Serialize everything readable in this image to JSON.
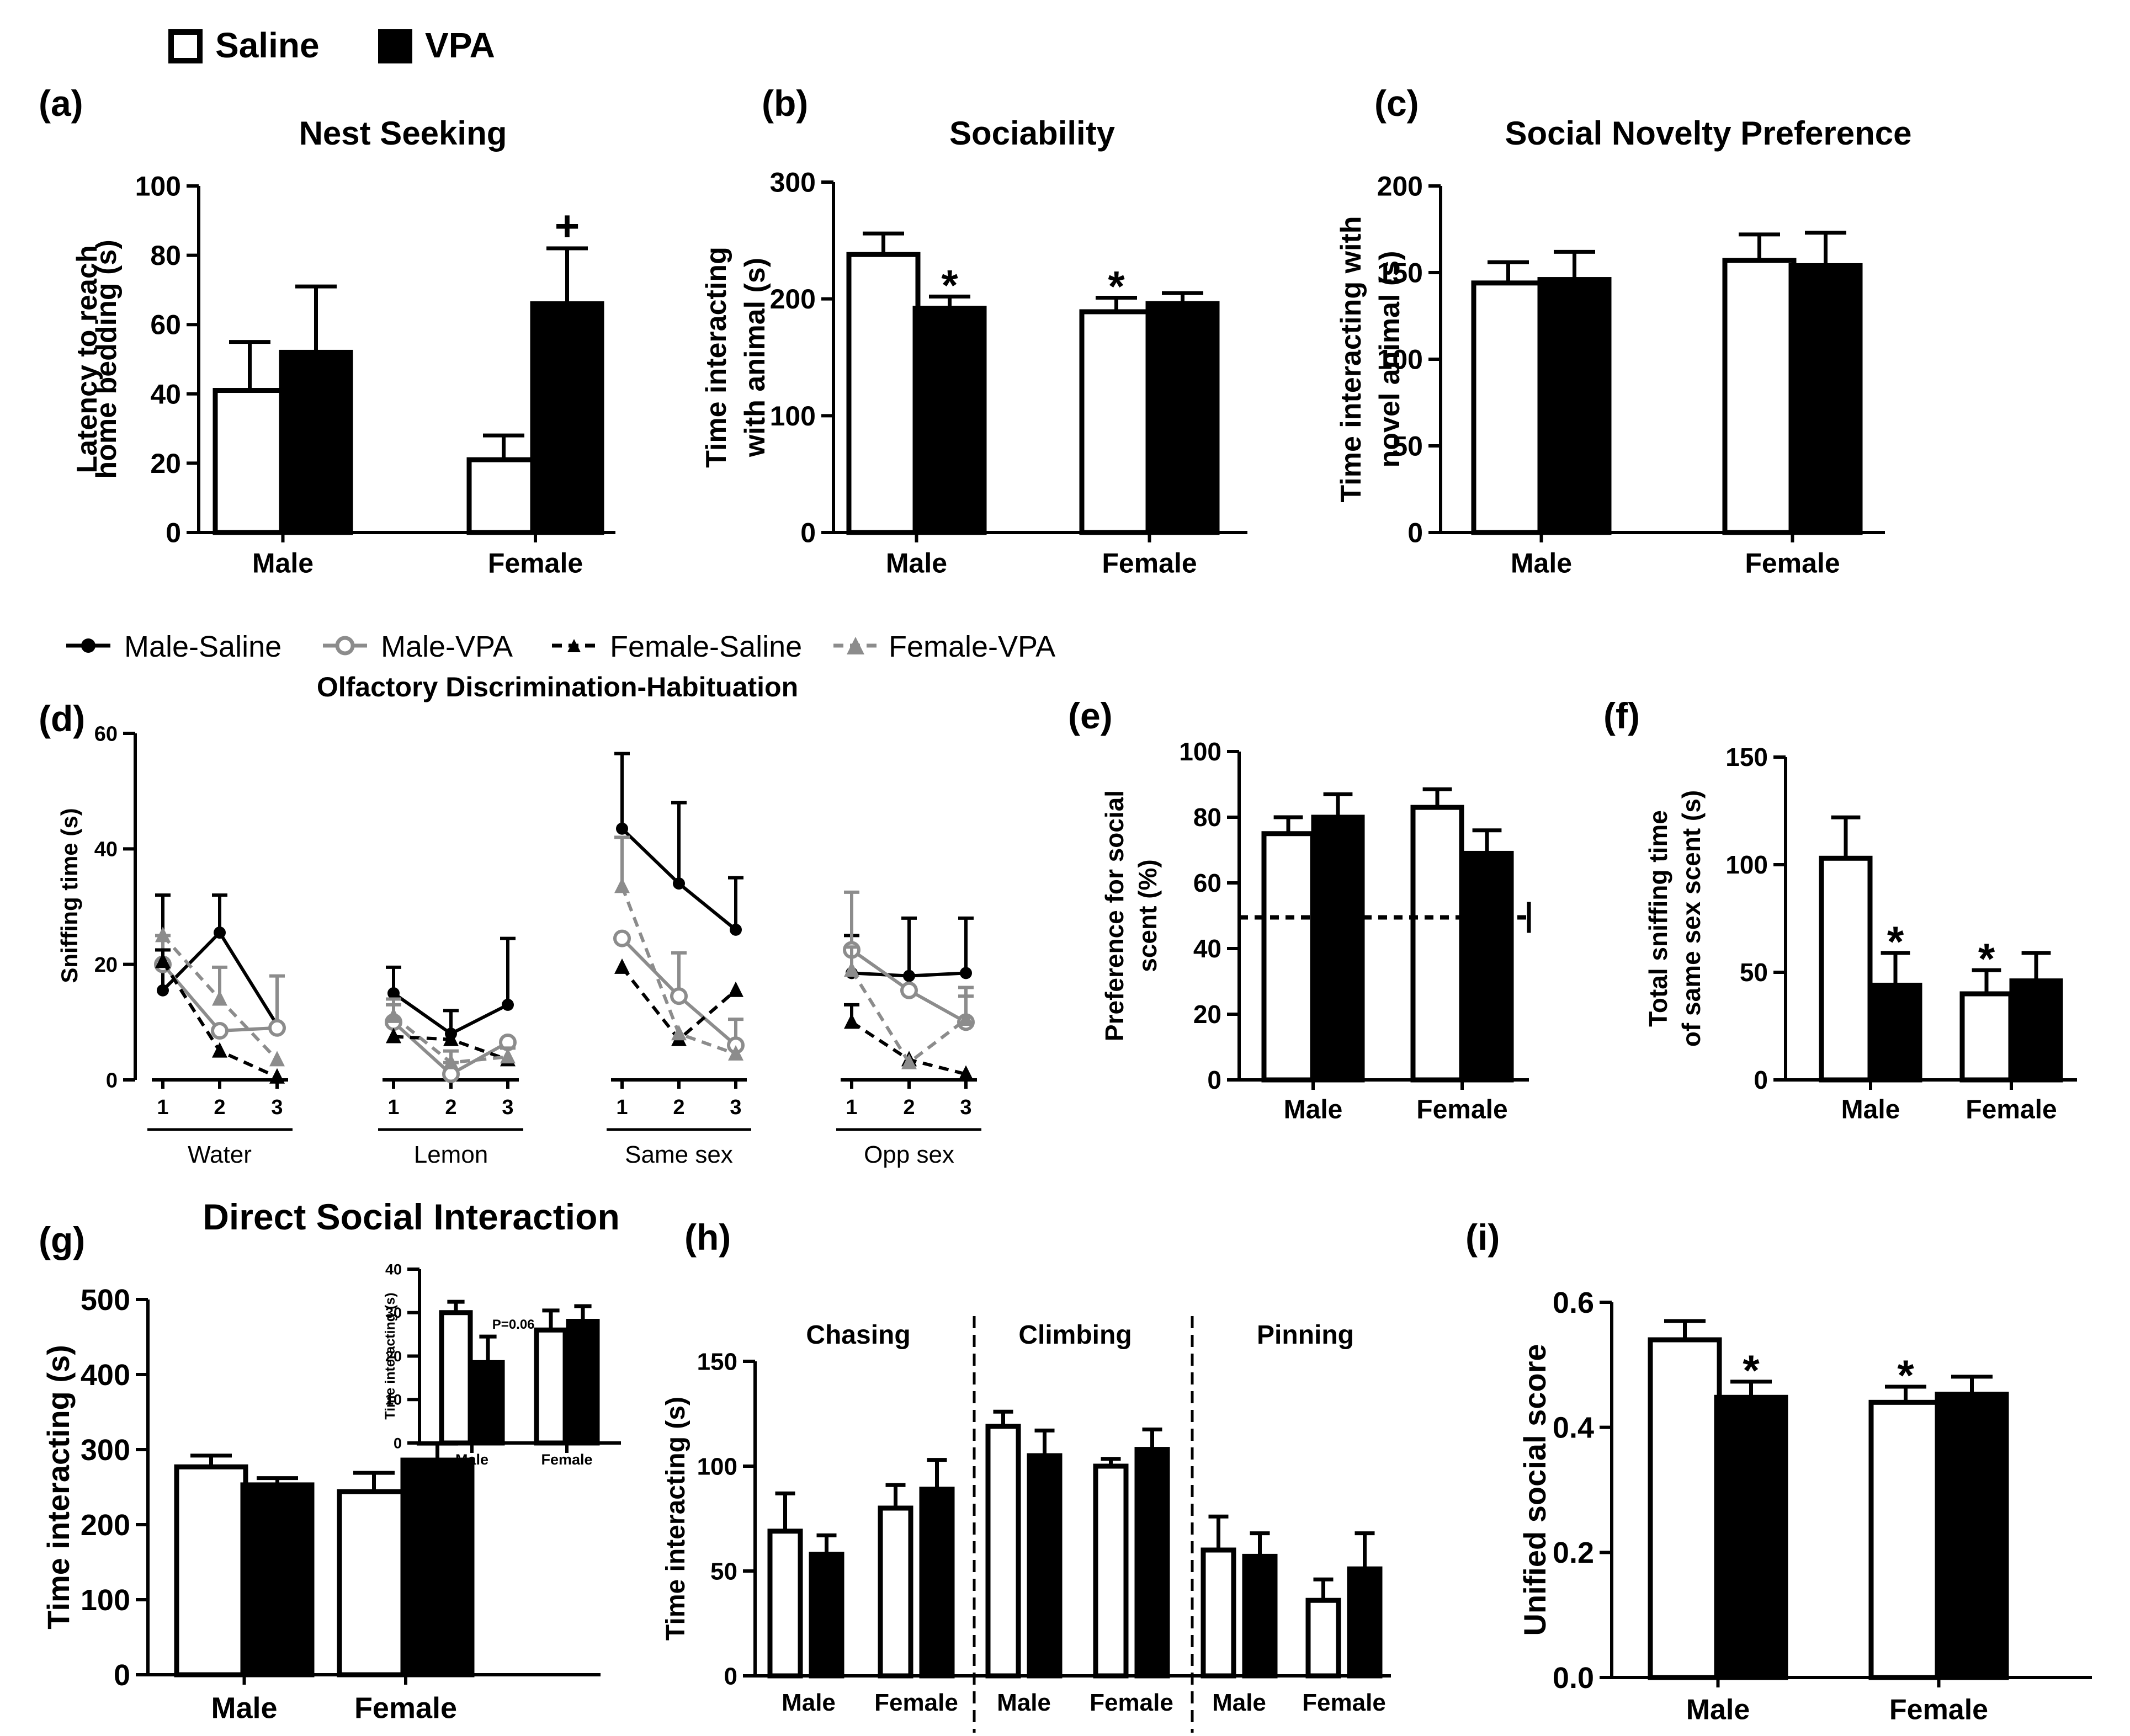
{
  "legend": {
    "saline_label": "Saline",
    "vpa_label": "VPA"
  },
  "line_legend": {
    "male_saline": "Male-Saline",
    "male_vpa": "Male-VPA",
    "female_saline": "Female-Saline",
    "female_vpa": "Female-VPA"
  },
  "colors": {
    "saline_fill": "#ffffff",
    "vpa_fill": "#000000",
    "grey": "#8c8c8c",
    "darkgrey": "#6e6e6e"
  },
  "chart_data": [
    {
      "id": "a",
      "panel_label": "(a)",
      "type": "bar",
      "title": "Nest Seeking",
      "ylabel": [
        "Latency to reach",
        "home bedding (s)"
      ],
      "categories": [
        "Male",
        "Female"
      ],
      "ylim": [
        0,
        100
      ],
      "yticks": [
        "0",
        "20",
        "40",
        "60",
        "80",
        "100"
      ],
      "series": [
        {
          "name": "Saline",
          "values": [
            41,
            21
          ],
          "errors": [
            14,
            7
          ]
        },
        {
          "name": "VPA",
          "values": [
            52,
            66
          ],
          "errors": [
            19,
            16
          ]
        }
      ],
      "annotations": [
        {
          "text": "+",
          "category": 1,
          "series": 1
        }
      ]
    },
    {
      "id": "b",
      "panel_label": "(b)",
      "type": "bar",
      "title": "Sociability",
      "ylabel": [
        "Time interacting",
        "with animal (s)"
      ],
      "categories": [
        "Male",
        "Female"
      ],
      "ylim": [
        0,
        300
      ],
      "yticks": [
        "0",
        "100",
        "200",
        "300"
      ],
      "series": [
        {
          "name": "Saline",
          "values": [
            238,
            189
          ],
          "errors": [
            18,
            12
          ]
        },
        {
          "name": "VPA",
          "values": [
            192,
            196
          ],
          "errors": [
            10,
            9
          ]
        }
      ],
      "annotations": [
        {
          "text": "*",
          "category": 0,
          "series": 1
        },
        {
          "text": "*",
          "category": 1,
          "series": 0
        }
      ]
    },
    {
      "id": "c",
      "panel_label": "(c)",
      "type": "bar",
      "title": "Social Novelty Preference",
      "ylabel": [
        "Time interacting with",
        "novel animal (s)"
      ],
      "categories": [
        "Male",
        "Female"
      ],
      "ylim": [
        0,
        200
      ],
      "yticks": [
        "0",
        "50",
        "100",
        "150",
        "200"
      ],
      "series": [
        {
          "name": "Saline",
          "values": [
            144,
            157
          ],
          "errors": [
            12,
            15
          ]
        },
        {
          "name": "VPA",
          "values": [
            146,
            154
          ],
          "errors": [
            16,
            19
          ]
        }
      ],
      "annotations": []
    },
    {
      "id": "d",
      "panel_label": "(d)",
      "type": "line",
      "title": "Olfactory Discrimination-Habituation",
      "ylabel": [
        "Sniffing time (s)"
      ],
      "ylim": [
        0,
        60
      ],
      "yticks": [
        "0",
        "20",
        "40",
        "60"
      ],
      "groups": [
        "Water",
        "Lemon",
        "Same sex",
        "Opp sex"
      ],
      "trials": [
        "1",
        "2",
        "3"
      ],
      "series": [
        {
          "name": "Male-Saline",
          "values": [
            [
              15.5,
              25.5,
              9.5
            ],
            [
              15,
              8,
              13
            ],
            [
              43.5,
              34,
              26
            ],
            [
              18.5,
              18,
              18.5
            ]
          ],
          "errors": [
            [
              16.5,
              6.5,
              0
            ],
            [
              4.5,
              4,
              11.5
            ],
            [
              13,
              14,
              9
            ],
            [
              6.5,
              10,
              9.5
            ]
          ]
        },
        {
          "name": "Male-VPA",
          "values": [
            [
              20,
              8.5,
              9
            ],
            [
              10,
              1,
              6.5
            ],
            [
              24.5,
              14.5,
              6
            ],
            [
              22.5,
              15.5,
              10
            ]
          ],
          "errors": [
            [
              5,
              0,
              9
            ],
            [
              3,
              2,
              0
            ],
            [
              0,
              7.5,
              4.5
            ],
            [
              10,
              0,
              6
            ]
          ]
        },
        {
          "name": "Female-Saline",
          "values": [
            [
              20.5,
              5,
              0.5
            ],
            [
              7.5,
              7,
              3.5
            ],
            [
              19.5,
              7,
              15.5
            ],
            [
              10,
              3.5,
              1
            ]
          ],
          "errors": [
            [
              2,
              0,
              0
            ],
            [
              0,
              0,
              0
            ],
            [
              0,
              0,
              0
            ],
            [
              3,
              0,
              0
            ]
          ]
        },
        {
          "name": "Female-VPA",
          "values": [
            [
              25,
              14,
              3.5
            ],
            [
              11,
              3,
              4
            ],
            [
              33.5,
              8,
              4.5
            ],
            [
              19,
              3,
              10.5
            ]
          ],
          "errors": [
            [
              0,
              5.5,
              0
            ],
            [
              3,
              2,
              1.5
            ],
            [
              8.5,
              0,
              0
            ],
            [
              4,
              0,
              4
            ]
          ]
        }
      ]
    },
    {
      "id": "e",
      "panel_label": "(e)",
      "type": "bar",
      "title": "",
      "ylabel": [
        "Preference for social",
        "scent (%)"
      ],
      "categories": [
        "Male",
        "Female"
      ],
      "ylim": [
        0,
        100
      ],
      "yticks": [
        "0",
        "20",
        "40",
        "60",
        "80",
        "100"
      ],
      "series": [
        {
          "name": "Saline",
          "values": [
            75,
            83
          ],
          "errors": [
            5,
            5.5
          ]
        },
        {
          "name": "VPA",
          "values": [
            80,
            69
          ],
          "errors": [
            7,
            7
          ]
        }
      ],
      "reference_line": 49.5,
      "annotations": []
    },
    {
      "id": "f",
      "panel_label": "(f)",
      "type": "bar",
      "title": "",
      "ylabel": [
        "Total sniffing time",
        "of same sex scent (s)"
      ],
      "categories": [
        "Male",
        "Female"
      ],
      "ylim": [
        0,
        150
      ],
      "yticks": [
        "0",
        "50",
        "100",
        "150"
      ],
      "series": [
        {
          "name": "Saline",
          "values": [
            103,
            40
          ],
          "errors": [
            19,
            11
          ]
        },
        {
          "name": "VPA",
          "values": [
            44,
            46
          ],
          "errors": [
            15,
            13
          ]
        }
      ],
      "annotations": [
        {
          "text": "*",
          "category": 0,
          "series": 1
        },
        {
          "text": "*",
          "category": 1,
          "series": 0
        }
      ]
    },
    {
      "id": "g",
      "panel_label": "(g)",
      "type": "bar",
      "title": "Direct Social Interaction",
      "ylabel": [
        "Time interacting (s)"
      ],
      "categories": [
        "Male",
        "Female"
      ],
      "ylim": [
        0,
        500
      ],
      "yticks": [
        "0",
        "100",
        "200",
        "300",
        "400",
        "500"
      ],
      "series": [
        {
          "name": "Saline",
          "values": [
            277,
            244
          ],
          "errors": [
            15,
            25
          ]
        },
        {
          "name": "VPA",
          "values": [
            253,
            286
          ],
          "errors": [
            9,
            22
          ]
        }
      ],
      "annotations": []
    },
    {
      "id": "g_inset",
      "panel_label": "",
      "type": "bar",
      "title": "",
      "ylabel": [
        "Time interacting (s)"
      ],
      "categories": [
        "Male",
        "Female"
      ],
      "ylim": [
        0,
        40
      ],
      "yticks": [
        "0",
        "10",
        "20",
        "30",
        "40"
      ],
      "series": [
        {
          "name": "Saline",
          "values": [
            30,
            26
          ],
          "errors": [
            2.5,
            4.5
          ]
        },
        {
          "name": "VPA",
          "values": [
            18.5,
            28
          ],
          "errors": [
            6,
            3.5
          ]
        }
      ],
      "annotations": [
        {
          "text": "P=0.06",
          "category": 0,
          "series": 1
        }
      ]
    },
    {
      "id": "h",
      "panel_label": "(h)",
      "type": "bar",
      "title": "",
      "ylabel": [
        "Time interacting (s)"
      ],
      "groups": [
        "Chasing",
        "Climbing",
        "Pinning"
      ],
      "categories": [
        "Male",
        "Female"
      ],
      "ylim": [
        0,
        150
      ],
      "yticks": [
        "0",
        "50",
        "100",
        "150"
      ],
      "series": [
        {
          "name": "Saline",
          "values": [
            [
              69,
              80
            ],
            [
              119,
              100
            ],
            [
              60,
              36
            ]
          ],
          "errors": [
            [
              18,
              11
            ],
            [
              7,
              3.5
            ],
            [
              16,
              10
            ]
          ]
        },
        {
          "name": "VPA",
          "values": [
            [
              58,
              89
            ],
            [
              105,
              108
            ],
            [
              57,
              51
            ]
          ],
          "errors": [
            [
              9,
              14
            ],
            [
              12,
              9.5
            ],
            [
              11,
              17
            ]
          ]
        }
      ],
      "annotations": []
    },
    {
      "id": "i",
      "panel_label": "(i)",
      "type": "bar",
      "title": "",
      "ylabel": [
        "Unified social score"
      ],
      "categories": [
        "Male",
        "Female"
      ],
      "ylim": [
        0,
        0.6
      ],
      "yticks": [
        "0.0",
        "0.2",
        "0.4",
        "0.6"
      ],
      "series": [
        {
          "name": "Saline",
          "values": [
            0.54,
            0.44
          ],
          "errors": [
            0.03,
            0.025
          ]
        },
        {
          "name": "VPA",
          "values": [
            0.448,
            0.453
          ],
          "errors": [
            0.025,
            0.028
          ]
        }
      ],
      "annotations": [
        {
          "text": "*",
          "category": 0,
          "series": 1
        },
        {
          "text": "*",
          "category": 1,
          "series": 0
        }
      ]
    }
  ]
}
